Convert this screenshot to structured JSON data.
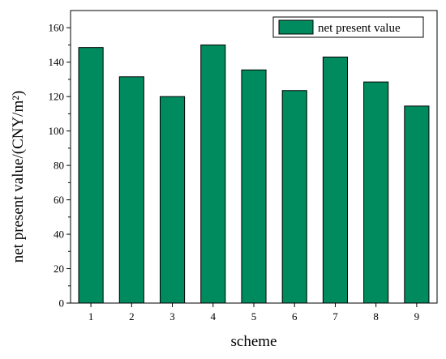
{
  "chart_data": {
    "type": "bar",
    "categories": [
      "1",
      "2",
      "3",
      "4",
      "5",
      "6",
      "7",
      "8",
      "9"
    ],
    "series": [
      {
        "name": "net present value",
        "values": [
          148.5,
          131.5,
          120,
          150,
          135.5,
          123.5,
          143,
          128.5,
          114.5
        ]
      }
    ],
    "xlabel": "scheme",
    "ylabel": "net present value/(CNY/m²)",
    "ylim": [
      0,
      170
    ],
    "yticks": [
      0,
      20,
      40,
      60,
      80,
      100,
      120,
      140,
      160
    ],
    "grid": false,
    "legend": "top-right",
    "colors": {
      "bar_fill": "#008B5E",
      "bar_stroke": "#000000"
    }
  }
}
